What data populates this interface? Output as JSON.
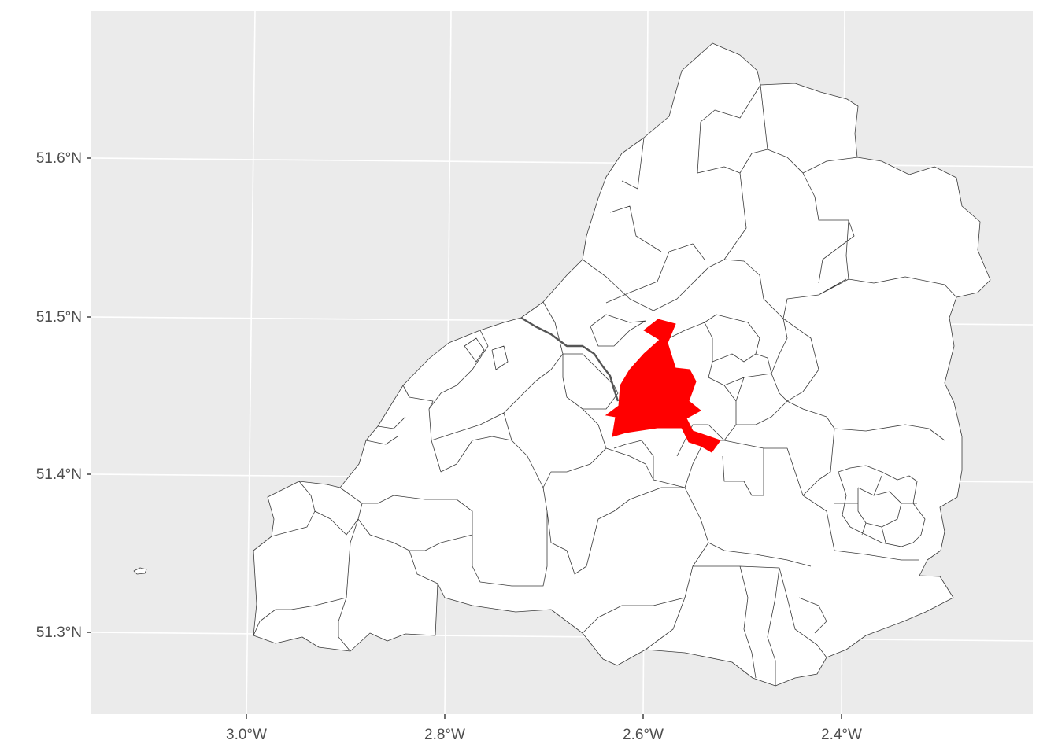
{
  "map": {
    "background_color": "#ebebeb",
    "gridline_color": "#ffffff",
    "region_fill": "#ffffff",
    "region_stroke": "#3a3a3a",
    "highlight_fill": "#ff0000",
    "highlighted_region_count": 1,
    "y_axis": {
      "ticks": [
        {
          "value": 51.3,
          "label": "51.3°N"
        },
        {
          "value": 51.4,
          "label": "51.4°N"
        },
        {
          "value": 51.5,
          "label": "51.5°N"
        },
        {
          "value": 51.6,
          "label": "51.6°N"
        }
      ]
    },
    "x_axis": {
      "ticks": [
        {
          "value": -3.0,
          "label": "3.0°W"
        },
        {
          "value": -2.8,
          "label": "2.8°W"
        },
        {
          "value": -2.6,
          "label": "2.6°W"
        },
        {
          "value": -2.4,
          "label": "2.4°W"
        }
      ]
    }
  }
}
